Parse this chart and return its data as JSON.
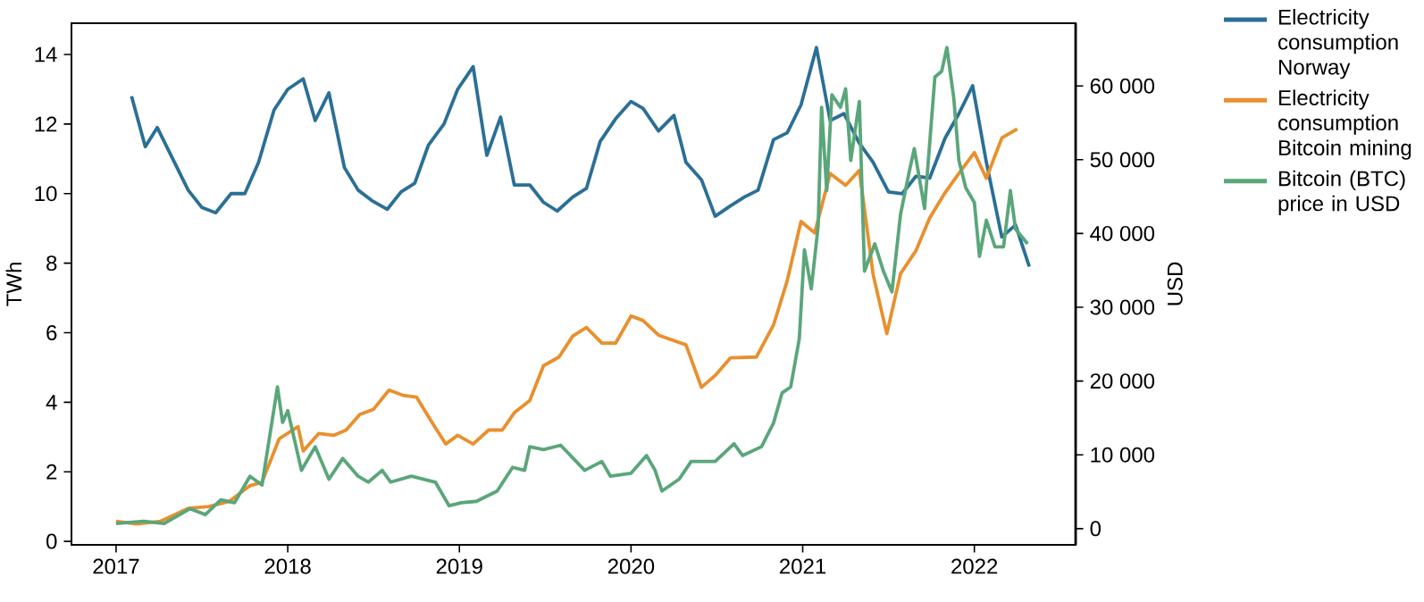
{
  "chart_data": {
    "type": "line",
    "xlabel": null,
    "ylabel": "TWh",
    "y2label": "USD",
    "xlim": [
      2016.74,
      2022.59
    ],
    "xticks": [
      2017,
      2018,
      2019,
      2020,
      2021,
      2022
    ],
    "ylim": [
      -0.1,
      14.9
    ],
    "yticks": [
      0,
      2,
      4,
      6,
      8,
      10,
      12,
      14
    ],
    "y2lim": [
      -2200,
      68500
    ],
    "y2ticks": [
      0,
      {
        "value": 10000,
        "label": "10 000"
      },
      {
        "value": 20000,
        "label": "20 000"
      },
      {
        "value": 30000,
        "label": "30 000"
      },
      {
        "value": 40000,
        "label": "40 000"
      },
      {
        "value": 50000,
        "label": "50 000"
      },
      {
        "value": 60000,
        "label": "60 000"
      }
    ],
    "legend": "right",
    "marker": "none",
    "line_style": "solid",
    "series": [
      {
        "name": "Electricity consumption Norway",
        "color": "#2b6f96",
        "axis": "y",
        "x": [
          2017.09,
          2017.17,
          2017.24,
          2017.33,
          2017.42,
          2017.5,
          2017.58,
          2017.67,
          2017.75,
          2017.83,
          2017.92,
          2018.0,
          2018.09,
          2018.16,
          2018.24,
          2018.33,
          2018.41,
          2018.49,
          2018.58,
          2018.66,
          2018.74,
          2018.82,
          2018.91,
          2018.99,
          2019.08,
          2019.16,
          2019.24,
          2019.32,
          2019.41,
          2019.49,
          2019.57,
          2019.66,
          2019.74,
          2019.82,
          2019.91,
          2020.0,
          2020.07,
          2020.16,
          2020.25,
          2020.32,
          2020.41,
          2020.49,
          2020.58,
          2020.66,
          2020.74,
          2020.83,
          2020.91,
          2020.99,
          2021.08,
          2021.16,
          2021.24,
          2021.33,
          2021.41,
          2021.5,
          2021.58,
          2021.66,
          2021.74,
          2021.83,
          2021.91,
          2021.99,
          2022.07,
          2022.16,
          2022.24,
          2022.32
        ],
        "values": [
          12.8,
          11.35,
          11.9,
          11.0,
          10.1,
          9.6,
          9.45,
          10.0,
          10.0,
          10.9,
          12.4,
          13.0,
          13.3,
          12.1,
          12.9,
          10.75,
          10.1,
          9.8,
          9.55,
          10.05,
          10.3,
          11.4,
          12.0,
          13.0,
          13.65,
          11.1,
          12.2,
          10.25,
          10.25,
          9.75,
          9.5,
          9.9,
          10.15,
          11.5,
          12.15,
          12.65,
          12.45,
          11.8,
          12.25,
          10.9,
          10.4,
          9.35,
          9.65,
          9.9,
          10.1,
          11.55,
          11.75,
          12.55,
          14.2,
          12.1,
          12.3,
          11.45,
          10.9,
          10.05,
          10.0,
          10.5,
          10.45,
          11.6,
          12.3,
          13.1,
          10.9,
          8.75,
          9.1,
          7.9
        ]
      },
      {
        "name": "Electricity consumption Bitcoin mining",
        "color": "#e8902e",
        "axis": "y",
        "x": [
          2017.0,
          2017.12,
          2017.26,
          2017.42,
          2017.54,
          2017.66,
          2017.78,
          2017.85,
          2017.95,
          2018.06,
          2018.09,
          2018.18,
          2018.27,
          2018.34,
          2018.42,
          2018.5,
          2018.59,
          2018.67,
          2018.75,
          2018.83,
          2018.92,
          2018.99,
          2019.08,
          2019.17,
          2019.25,
          2019.32,
          2019.41,
          2019.49,
          2019.58,
          2019.66,
          2019.74,
          2019.83,
          2019.91,
          2020.0,
          2020.07,
          2020.16,
          2020.32,
          2020.41,
          2020.49,
          2020.58,
          2020.73,
          2020.83,
          2020.91,
          2020.99,
          2021.07,
          2021.16,
          2021.25,
          2021.33,
          2021.41,
          2021.49,
          2021.57,
          2021.66,
          2021.74,
          2021.83,
          2021.91,
          2022.0,
          2022.07,
          2022.16,
          2022.25
        ],
        "values": [
          0.58,
          0.5,
          0.58,
          0.95,
          1.0,
          1.15,
          1.6,
          1.7,
          2.95,
          3.3,
          2.6,
          3.1,
          3.05,
          3.2,
          3.65,
          3.8,
          4.35,
          4.2,
          4.15,
          3.5,
          2.8,
          3.05,
          2.8,
          3.2,
          3.2,
          3.7,
          4.05,
          5.05,
          5.3,
          5.9,
          6.15,
          5.7,
          5.7,
          6.48,
          6.35,
          5.93,
          5.65,
          4.43,
          4.77,
          5.28,
          5.3,
          6.22,
          7.5,
          9.2,
          8.87,
          10.58,
          10.24,
          10.67,
          7.68,
          5.97,
          7.7,
          8.36,
          9.3,
          10.03,
          10.58,
          11.18,
          10.44,
          11.6,
          11.86
        ]
      },
      {
        "name": "Bitcoin (BTC) price in USD",
        "color": "#5aa67a",
        "axis": "y2",
        "x": [
          2017.0,
          2017.16,
          2017.28,
          2017.43,
          2017.52,
          2017.61,
          2017.69,
          2017.78,
          2017.85,
          2017.94,
          2017.97,
          2018.0,
          2018.08,
          2018.16,
          2018.24,
          2018.32,
          2018.41,
          2018.47,
          2018.55,
          2018.6,
          2018.72,
          2018.86,
          2018.94,
          2019.01,
          2019.1,
          2019.22,
          2019.31,
          2019.38,
          2019.41,
          2019.49,
          2019.59,
          2019.73,
          2019.83,
          2019.88,
          2020.0,
          2020.09,
          2020.14,
          2020.18,
          2020.28,
          2020.35,
          2020.49,
          2020.6,
          2020.65,
          2020.76,
          2020.83,
          2020.88,
          2020.93,
          2020.98,
          2021.01,
          2021.05,
          2021.09,
          2021.11,
          2021.14,
          2021.17,
          2021.22,
          2021.25,
          2021.28,
          2021.33,
          2021.36,
          2021.42,
          2021.47,
          2021.52,
          2021.57,
          2021.62,
          2021.65,
          2021.71,
          2021.77,
          2021.81,
          2021.84,
          2021.88,
          2021.91,
          2021.95,
          2022.0,
          2022.03,
          2022.07,
          2022.12,
          2022.17,
          2022.21,
          2022.24,
          2022.31
        ],
        "values": [
          700,
          1000,
          700,
          2700,
          1900,
          3900,
          3500,
          7100,
          5900,
          19200,
          14400,
          16000,
          7900,
          11100,
          6700,
          9500,
          7100,
          6300,
          7900,
          6300,
          7100,
          6300,
          3100,
          3500,
          3700,
          5100,
          8300,
          7900,
          11100,
          10700,
          11300,
          7900,
          9100,
          7100,
          7500,
          9900,
          7900,
          5100,
          6700,
          9100,
          9100,
          11500,
          9900,
          11100,
          14300,
          18400,
          19200,
          25700,
          37800,
          32500,
          41000,
          57100,
          45800,
          58800,
          57100,
          59600,
          49900,
          57900,
          34900,
          38600,
          34900,
          32100,
          42600,
          48300,
          51500,
          43400,
          61200,
          62000,
          65200,
          58400,
          49900,
          46200,
          44200,
          36900,
          41800,
          38200,
          38200,
          45800,
          40600,
          38600
        ]
      }
    ]
  }
}
